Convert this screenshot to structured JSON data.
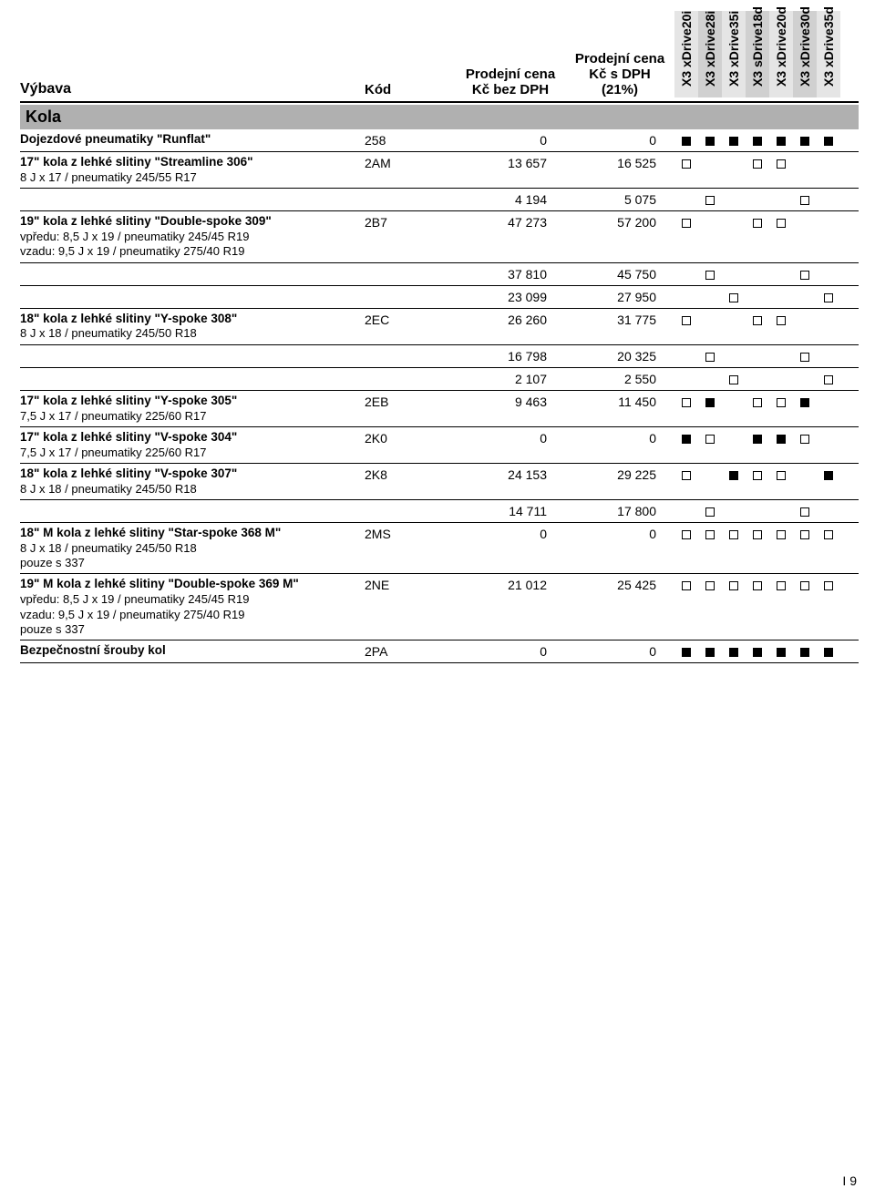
{
  "headers": {
    "name": "Výbava",
    "code": "Kód",
    "price1_a": "Prodejní cena",
    "price1_b": "Kč bez DPH",
    "price2_a": "Prodejní cena",
    "price2_b": "Kč s DPH",
    "price2_c": "(21%)",
    "variants": [
      "X3 xDrive20i",
      "X3 xDrive28i",
      "X3 xDrive35i",
      "X3 sDrive18d",
      "X3 xDrive20d",
      "X3 xDrive30d",
      "X3 xDrive35d"
    ]
  },
  "section": "Kola",
  "rows": [
    {
      "main": "Dojezdové pneumatiky \"Runflat\"",
      "sub": [],
      "code": "258",
      "p1": "0",
      "p2": "0",
      "v": [
        "f",
        "f",
        "f",
        "f",
        "f",
        "f",
        "f"
      ]
    },
    {
      "main": "17\" kola z lehké slitiny \"Streamline 306\"",
      "sub": [
        "8 J x 17 / pneumatiky 245/55 R17"
      ],
      "code": "2AM",
      "p1": "13 657",
      "p2": "16 525",
      "v": [
        "e",
        "",
        "",
        "e",
        "e",
        "",
        ""
      ]
    },
    {
      "main": "",
      "sub": [],
      "code": "",
      "p1": "4 194",
      "p2": "5 075",
      "v": [
        "",
        "e",
        "",
        "",
        "",
        "e",
        ""
      ]
    },
    {
      "main": "19\" kola z lehké slitiny \"Double-spoke 309\"",
      "sub": [
        "vpředu: 8,5 J x 19 / pneumatiky 245/45 R19",
        "vzadu: 9,5 J x 19 / pneumatiky 275/40 R19"
      ],
      "code": "2B7",
      "p1": "47 273",
      "p2": "57 200",
      "v": [
        "e",
        "",
        "",
        "e",
        "e",
        "",
        ""
      ]
    },
    {
      "main": "",
      "sub": [],
      "code": "",
      "p1": "37 810",
      "p2": "45 750",
      "v": [
        "",
        "e",
        "",
        "",
        "",
        "e",
        ""
      ]
    },
    {
      "main": "",
      "sub": [],
      "code": "",
      "p1": "23 099",
      "p2": "27 950",
      "v": [
        "",
        "",
        "e",
        "",
        "",
        "",
        "e"
      ]
    },
    {
      "main": "18\" kola z lehké slitiny \"Y-spoke 308\"",
      "sub": [
        "8 J x 18 / pneumatiky 245/50 R18"
      ],
      "code": "2EC",
      "p1": "26 260",
      "p2": "31 775",
      "v": [
        "e",
        "",
        "",
        "e",
        "e",
        "",
        ""
      ]
    },
    {
      "main": "",
      "sub": [],
      "code": "",
      "p1": "16 798",
      "p2": "20 325",
      "v": [
        "",
        "e",
        "",
        "",
        "",
        "e",
        ""
      ]
    },
    {
      "main": "",
      "sub": [],
      "code": "",
      "p1": "2 107",
      "p2": "2 550",
      "v": [
        "",
        "",
        "e",
        "",
        "",
        "",
        "e"
      ]
    },
    {
      "main": "17\" kola z lehké slitiny \"Y-spoke 305\"",
      "sub": [
        "7,5 J x 17 / pneumatiky 225/60 R17"
      ],
      "code": "2EB",
      "p1": "9 463",
      "p2": "11 450",
      "v": [
        "e",
        "f",
        "",
        "e",
        "e",
        "f",
        ""
      ]
    },
    {
      "main": "17\" kola z lehké slitiny \"V-spoke 304\"",
      "sub": [
        "7,5 J x 17 / pneumatiky 225/60 R17"
      ],
      "code": "2K0",
      "p1": "0",
      "p2": "0",
      "v": [
        "f",
        "e",
        "",
        "f",
        "f",
        "e",
        ""
      ]
    },
    {
      "main": "18\" kola z lehké slitiny \"V-spoke 307\"",
      "sub": [
        "8 J x 18 / pneumatiky 245/50 R18"
      ],
      "code": "2K8",
      "p1": "24 153",
      "p2": "29 225",
      "v": [
        "e",
        "",
        "f",
        "e",
        "e",
        "",
        "f"
      ]
    },
    {
      "main": "",
      "sub": [],
      "code": "",
      "p1": "14 711",
      "p2": "17 800",
      "v": [
        "",
        "e",
        "",
        "",
        "",
        "e",
        ""
      ]
    },
    {
      "main": "18\" M kola z lehké slitiny \"Star-spoke 368 M\"",
      "sub": [
        "8 J x 18 / pneumatiky 245/50 R18",
        "pouze s 337"
      ],
      "code": "2MS",
      "p1": "0",
      "p2": "0",
      "v": [
        "e",
        "e",
        "e",
        "e",
        "e",
        "e",
        "e"
      ]
    },
    {
      "main": "19\" M kola z lehké slitiny \"Double-spoke 369 M\"",
      "sub": [
        "vpředu: 8,5 J x 19 / pneumatiky 245/45 R19",
        "vzadu: 9,5 J x 19 / pneumatiky 275/40 R19",
        "pouze s 337"
      ],
      "code": "2NE",
      "p1": "21 012",
      "p2": "25 425",
      "v": [
        "e",
        "e",
        "e",
        "e",
        "e",
        "e",
        "e"
      ]
    },
    {
      "main": "Bezpečnostní šrouby kol",
      "sub": [],
      "code": "2PA",
      "p1": "0",
      "p2": "0",
      "v": [
        "f",
        "f",
        "f",
        "f",
        "f",
        "f",
        "f"
      ]
    }
  ],
  "pagenum": "I 9"
}
